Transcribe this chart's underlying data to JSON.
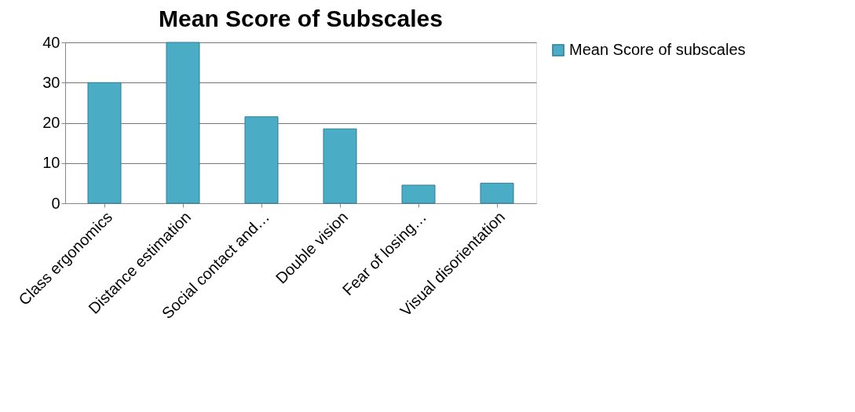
{
  "chart_data": {
    "type": "bar",
    "title": "Mean Score of Subscales",
    "categories": [
      "Class ergonomics",
      "Distance estimation",
      "Social contact and…",
      "Double vision",
      "Fear of losing…",
      "Visual disorientation"
    ],
    "series": [
      {
        "name": "Mean Score of subscales",
        "color": "#4bacc6",
        "values": [
          30,
          40,
          21.5,
          18.5,
          4.5,
          5
        ]
      }
    ],
    "ylim": [
      0,
      40
    ],
    "yticks": [
      0,
      10,
      20,
      30,
      40
    ],
    "grid": "y",
    "legend": "right"
  }
}
